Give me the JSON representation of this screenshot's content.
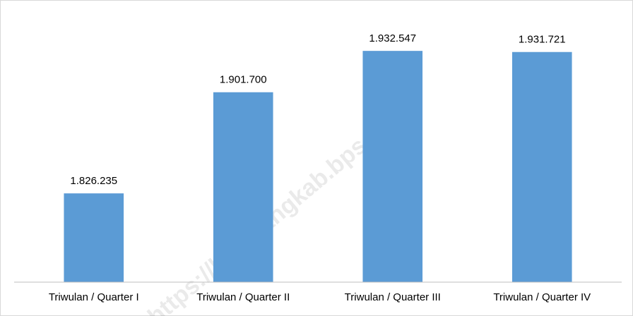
{
  "chart_data": {
    "type": "bar",
    "categories": [
      "Triwulan / Quarter I",
      "Triwulan / Quarter II",
      "Triwulan / Quarter III",
      "Triwulan / Quarter IV"
    ],
    "values": [
      1826235,
      1901700,
      1932547,
      1931721
    ],
    "value_labels": [
      "1.826.235",
      "1.901.700",
      "1.932.547",
      "1.931.721"
    ],
    "color": "#5b9bd5",
    "ylim": [
      1760000,
      1960000
    ],
    "watermark": "https://lumajangkab.bps.go.id"
  }
}
